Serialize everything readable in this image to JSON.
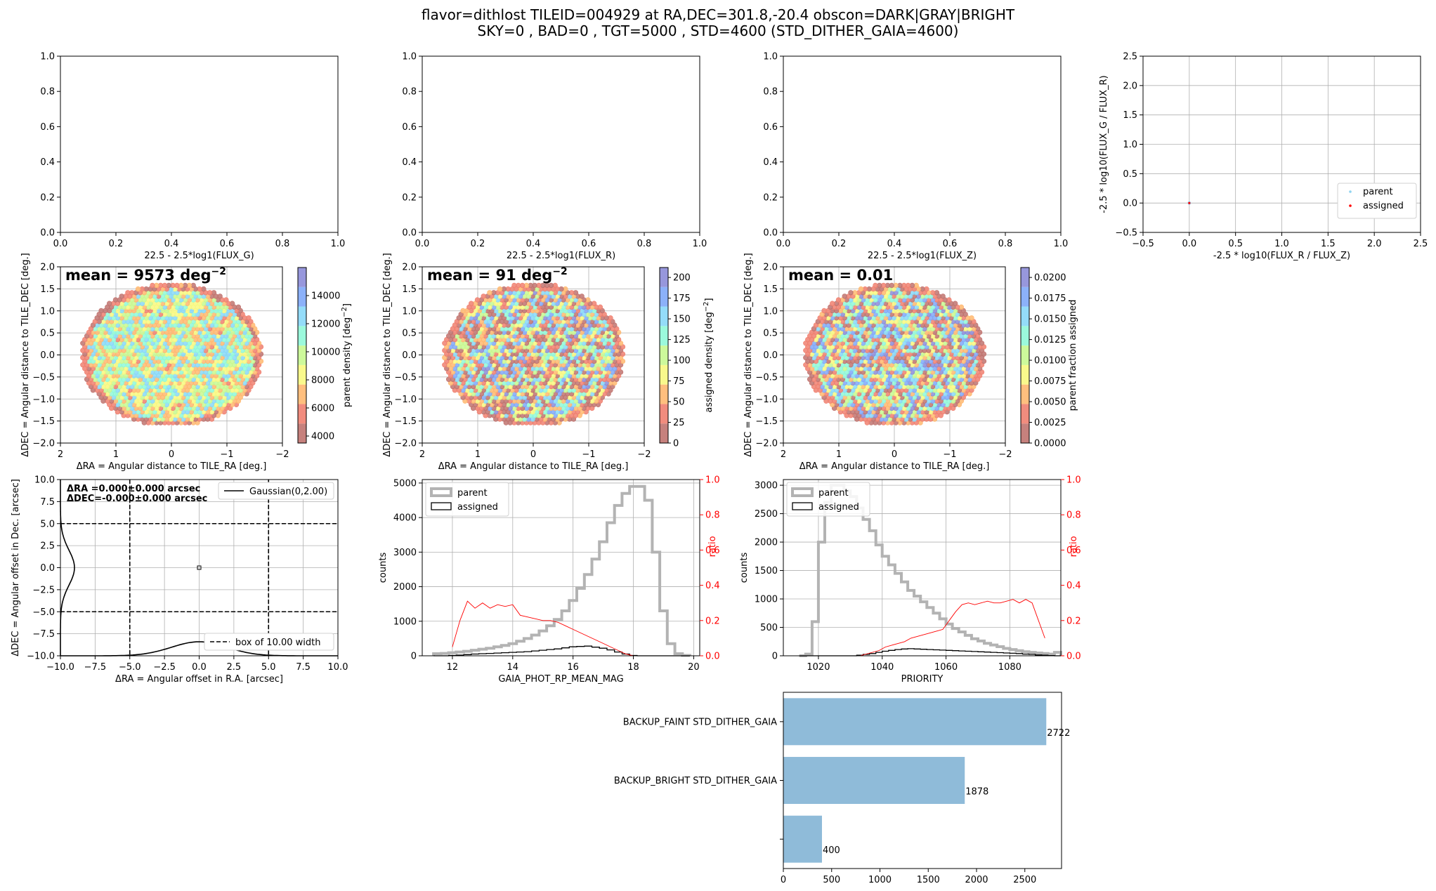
{
  "figure": {
    "title_line1": "flavor=dithlost     TILEID=004929 at RA,DEC=301.8,-20.4    obscon=DARK|GRAY|BRIGHT",
    "title_line2": "SKY=0 , BAD=0 , TGT=5000 , STD=4600 (STD_DITHER_GAIA=4600)"
  },
  "chart_data": [
    {
      "id": "flux_g",
      "type": "scatter",
      "xlabel": "22.5 - 2.5*log1(FLUX_G)",
      "ylabel": "",
      "xlim": [
        0,
        1
      ],
      "ylim": [
        0,
        1
      ],
      "xticks": [
        "0.0",
        "0.2",
        "0.4",
        "0.6",
        "0.8",
        "1.0"
      ],
      "yticks": [
        "0.0",
        "0.2",
        "0.4",
        "0.6",
        "0.8",
        "1.0"
      ],
      "grid": false,
      "points": []
    },
    {
      "id": "flux_r",
      "type": "scatter",
      "xlabel": "22.5 - 2.5*log1(FLUX_R)",
      "ylabel": "",
      "xlim": [
        0,
        1
      ],
      "ylim": [
        0,
        1
      ],
      "xticks": [
        "0.0",
        "0.2",
        "0.4",
        "0.6",
        "0.8",
        "1.0"
      ],
      "yticks": [
        "0.0",
        "0.2",
        "0.4",
        "0.6",
        "0.8",
        "1.0"
      ],
      "grid": false,
      "points": []
    },
    {
      "id": "flux_z",
      "type": "scatter",
      "xlabel": "22.5 - 2.5*log1(FLUX_Z)",
      "ylabel": "",
      "xlim": [
        0,
        1
      ],
      "ylim": [
        0,
        1
      ],
      "xticks": [
        "0.0",
        "0.2",
        "0.4",
        "0.6",
        "0.8",
        "1.0"
      ],
      "yticks": [
        "0.0",
        "0.2",
        "0.4",
        "0.6",
        "0.8",
        "1.0"
      ],
      "grid": false,
      "points": []
    },
    {
      "id": "color_color",
      "type": "scatter",
      "xlabel": "-2.5 * log10(FLUX_R / FLUX_Z)",
      "ylabel": "-2.5 * log10(FLUX_G / FLUX_R)",
      "xlim": [
        -0.5,
        2.5
      ],
      "ylim": [
        -0.5,
        2.5
      ],
      "xticks": [
        "−0.5",
        "0.0",
        "0.5",
        "1.0",
        "1.5",
        "2.0",
        "2.5"
      ],
      "yticks": [
        "−0.5",
        "0.0",
        "0.5",
        "1.0",
        "1.5",
        "2.0",
        "2.5"
      ],
      "grid": true,
      "legend": "lower right",
      "series": [
        {
          "name": "parent",
          "color": "#8fd3f0",
          "points": [
            [
              0,
              0
            ]
          ]
        },
        {
          "name": "assigned",
          "color": "#ff0000",
          "points": [
            [
              0,
              0
            ]
          ]
        }
      ]
    },
    {
      "id": "parent_density",
      "type": "heatmap",
      "xlabel": "ΔRA = Angular distance to TILE_RA [deg.]",
      "ylabel": "ΔDEC = Angular distance to TILE_DEC [deg.]",
      "xlim": [
        2,
        -2
      ],
      "ylim": [
        -2,
        2
      ],
      "xticks": [
        "2",
        "1",
        "0",
        "−1",
        "−2"
      ],
      "yticks": [
        "−2.0",
        "−1.5",
        "−1.0",
        "−0.5",
        "0.0",
        "0.5",
        "1.0",
        "1.5",
        "2.0"
      ],
      "annotation": "mean = 9573 deg",
      "annotation_sup": "−2",
      "colorbar_label": "parent density [deg",
      "colorbar_label_sup": "−2",
      "colorbar_label_end": "]",
      "colorbar_range": [
        3500,
        16000
      ],
      "colorbar_ticks": [
        "4000",
        "6000",
        "8000",
        "10000",
        "12000",
        "14000"
      ],
      "colorbar_tick_values": [
        4000,
        6000,
        8000,
        10000,
        12000,
        14000
      ],
      "mean_value": 9573
    },
    {
      "id": "assigned_density",
      "type": "heatmap",
      "xlabel": "ΔRA = Angular distance to TILE_RA [deg.]",
      "ylabel": "ΔDEC = Angular distance to TILE_DEC [deg.]",
      "xlim": [
        2,
        -2
      ],
      "ylim": [
        -2,
        2
      ],
      "xticks": [
        "2",
        "1",
        "0",
        "−1",
        "−2"
      ],
      "yticks": [
        "−2.0",
        "−1.5",
        "−1.0",
        "−0.5",
        "0.0",
        "0.5",
        "1.0",
        "1.5",
        "2.0"
      ],
      "annotation": "mean = 91 deg",
      "annotation_sup": "−2",
      "colorbar_label": "assigned density [deg",
      "colorbar_label_sup": "−2",
      "colorbar_label_end": "]",
      "colorbar_range": [
        0,
        212
      ],
      "colorbar_ticks": [
        "0",
        "25",
        "50",
        "75",
        "100",
        "125",
        "150",
        "175",
        "200"
      ],
      "colorbar_tick_values": [
        0,
        25,
        50,
        75,
        100,
        125,
        150,
        175,
        200
      ],
      "mean_value": 91
    },
    {
      "id": "fraction_assigned",
      "type": "heatmap",
      "xlabel": "ΔRA = Angular distance to TILE_RA [deg.]",
      "ylabel": "ΔDEC = Angular distance to TILE_DEC [deg.]",
      "xlim": [
        2,
        -2
      ],
      "ylim": [
        -2,
        2
      ],
      "xticks": [
        "2",
        "1",
        "0",
        "−1",
        "−2"
      ],
      "yticks": [
        "−2.0",
        "−1.5",
        "−1.0",
        "−0.5",
        "0.0",
        "0.5",
        "1.0",
        "1.5",
        "2.0"
      ],
      "annotation": "mean = 0.01",
      "annotation_sup": "",
      "colorbar_label": "parent fraction assigned",
      "colorbar_label_sup": "",
      "colorbar_label_end": "",
      "colorbar_range": [
        0,
        0.0212
      ],
      "colorbar_ticks": [
        "0.0000",
        "0.0025",
        "0.0050",
        "0.0075",
        "0.0100",
        "0.0125",
        "0.0150",
        "0.0175",
        "0.0200"
      ],
      "colorbar_tick_values": [
        0,
        0.0025,
        0.005,
        0.0075,
        0.01,
        0.0125,
        0.015,
        0.0175,
        0.02
      ],
      "mean_value": 0.01
    },
    {
      "id": "dither_offsets",
      "type": "scatter",
      "xlabel": "ΔRA = Angular offset in R.A. [arcsec]",
      "ylabel": "ΔDEC = Angular offset in Dec. [arcsec]",
      "xlim": [
        -10,
        10
      ],
      "ylim": [
        -10,
        10
      ],
      "xticks": [
        "−10.0",
        "−7.5",
        "−5.0",
        "−2.5",
        "0.0",
        "2.5",
        "5.0",
        "7.5",
        "10.0"
      ],
      "yticks": [
        "−10.0",
        "−7.5",
        "−5.0",
        "−2.5",
        "0.0",
        "2.5",
        "5.0",
        "7.5",
        "10.0"
      ],
      "grid": true,
      "text_ra": "ΔRA =0.000±0.000 arcsec",
      "text_dec": "ΔDEC=-0.000±0.000 arcsec",
      "legend_gauss": "Gaussian(0,2.00)",
      "legend_box": "box of 10.00 width",
      "gauss_sigma": 2.0,
      "box_half_width": 5,
      "points": [
        [
          0,
          0
        ]
      ]
    },
    {
      "id": "hist_rp_mag",
      "type": "line",
      "xlabel": "GAIA_PHOT_RP_MEAN_MAG",
      "ylabel": "counts",
      "ylabel_right": "ratio",
      "xlim": [
        11,
        20.2
      ],
      "ylim": [
        0,
        5100
      ],
      "ylim_right": [
        0,
        1
      ],
      "xticks": [
        "12",
        "14",
        "16",
        "18",
        "20"
      ],
      "xtick_values": [
        12,
        14,
        16,
        18,
        20
      ],
      "yticks": [
        "0",
        "1000",
        "2000",
        "3000",
        "4000",
        "5000"
      ],
      "ytick_values": [
        0,
        1000,
        2000,
        3000,
        4000,
        5000
      ],
      "yticks_right": [
        "0.0",
        "0.2",
        "0.4",
        "0.6",
        "0.8",
        "1.0"
      ],
      "legend": "upper left",
      "series": [
        {
          "name": "parent",
          "color": "#b3b3b3",
          "x": [
            11.5,
            11.75,
            12.0,
            12.25,
            12.5,
            12.75,
            13.0,
            13.25,
            13.5,
            13.75,
            14.0,
            14.25,
            14.5,
            14.75,
            15.0,
            15.25,
            15.5,
            15.75,
            16.0,
            16.25,
            16.5,
            16.75,
            17.0,
            17.25,
            17.5,
            17.75,
            18.0,
            18.25,
            18.5,
            18.75,
            19.0,
            19.25,
            19.5,
            19.75
          ],
          "values": [
            60,
            70,
            90,
            110,
            130,
            160,
            190,
            220,
            260,
            300,
            350,
            420,
            500,
            600,
            720,
            870,
            1050,
            1300,
            1600,
            1950,
            2350,
            2800,
            3300,
            3850,
            4350,
            4700,
            4900,
            4900,
            4500,
            3000,
            1300,
            350,
            60,
            10
          ]
        },
        {
          "name": "assigned",
          "color": "#000000",
          "x": [
            11.5,
            11.75,
            12.0,
            12.25,
            12.5,
            12.75,
            13.0,
            13.25,
            13.5,
            13.75,
            14.0,
            14.25,
            14.5,
            14.75,
            15.0,
            15.25,
            15.5,
            15.75,
            16.0,
            16.25,
            16.5,
            16.75,
            17.0,
            17.25,
            17.5,
            17.75,
            18.0,
            18.25,
            18.5,
            18.75,
            19.0,
            19.25,
            19.5,
            19.75
          ],
          "values": [
            0,
            0,
            10,
            20,
            35,
            50,
            60,
            70,
            80,
            90,
            100,
            110,
            120,
            140,
            160,
            180,
            200,
            230,
            260,
            270,
            280,
            250,
            220,
            170,
            110,
            50,
            10,
            0,
            0,
            0,
            0,
            0,
            0,
            0
          ]
        },
        {
          "name": "ratio",
          "color": "#ff0000",
          "axis": "right",
          "x": [
            12.0,
            12.25,
            12.5,
            12.75,
            13.0,
            13.25,
            13.5,
            13.75,
            14.0,
            14.25,
            14.5,
            14.75,
            15.0,
            15.25,
            15.5,
            15.75,
            16.0,
            16.25,
            16.5,
            16.75,
            17.0,
            17.25,
            17.5,
            17.75,
            18.0
          ],
          "values": [
            0.05,
            0.2,
            0.31,
            0.27,
            0.3,
            0.27,
            0.29,
            0.28,
            0.29,
            0.23,
            0.22,
            0.21,
            0.2,
            0.2,
            0.19,
            0.17,
            0.15,
            0.13,
            0.11,
            0.09,
            0.07,
            0.05,
            0.03,
            0.01,
            0.0
          ]
        }
      ]
    },
    {
      "id": "hist_priority",
      "type": "line",
      "xlabel": "PRIORITY",
      "ylabel": "counts",
      "ylabel_right": "ratio",
      "xlim": [
        1009,
        1096
      ],
      "ylim": [
        0,
        3100
      ],
      "ylim_right": [
        0,
        1
      ],
      "xticks": [
        "1020",
        "1040",
        "1060",
        "1080"
      ],
      "xtick_values": [
        1020,
        1040,
        1060,
        1080
      ],
      "yticks": [
        "0",
        "500",
        "1000",
        "1500",
        "2000",
        "2500",
        "3000"
      ],
      "ytick_values": [
        0,
        500,
        1000,
        1500,
        2000,
        2500,
        3000
      ],
      "yticks_right": [
        "0.0",
        "0.2",
        "0.4",
        "0.6",
        "0.8",
        "1.0"
      ],
      "legend": "upper left",
      "series": [
        {
          "name": "parent",
          "color": "#b3b3b3",
          "x": [
            1015,
            1017,
            1019,
            1021,
            1023,
            1025,
            1027,
            1029,
            1031,
            1033,
            1035,
            1037,
            1039,
            1041,
            1043,
            1045,
            1047,
            1049,
            1051,
            1053,
            1055,
            1057,
            1059,
            1061,
            1063,
            1065,
            1067,
            1069,
            1071,
            1073,
            1075,
            1077,
            1079,
            1081,
            1083,
            1085,
            1087,
            1089,
            1091,
            1093,
            1095
          ],
          "values": [
            0,
            30,
            600,
            2000,
            2700,
            3000,
            3000,
            2900,
            2800,
            2600,
            2400,
            2200,
            1950,
            1750,
            1600,
            1450,
            1300,
            1150,
            1050,
            950,
            850,
            750,
            650,
            560,
            480,
            420,
            360,
            300,
            260,
            220,
            190,
            160,
            130,
            110,
            90,
            70,
            60,
            50,
            40,
            30,
            60
          ]
        },
        {
          "name": "assigned",
          "color": "#000000",
          "x": [
            1015,
            1017,
            1019,
            1021,
            1023,
            1025,
            1027,
            1029,
            1031,
            1033,
            1035,
            1037,
            1039,
            1041,
            1043,
            1045,
            1047,
            1049,
            1051,
            1053,
            1055,
            1057,
            1059,
            1061,
            1063,
            1065,
            1067,
            1069,
            1071,
            1073,
            1075,
            1077,
            1079,
            1081,
            1083,
            1085,
            1087,
            1089,
            1091,
            1093,
            1095
          ],
          "values": [
            0,
            0,
            0,
            0,
            0,
            0,
            0,
            0,
            0,
            10,
            25,
            40,
            60,
            80,
            95,
            110,
            120,
            125,
            120,
            115,
            110,
            105,
            100,
            95,
            90,
            85,
            80,
            75,
            70,
            65,
            60,
            55,
            50,
            45,
            40,
            30,
            25,
            15,
            10,
            5,
            0
          ]
        },
        {
          "name": "ratio",
          "color": "#ff0000",
          "axis": "right",
          "x": [
            1033,
            1035,
            1037,
            1039,
            1041,
            1043,
            1045,
            1047,
            1049,
            1051,
            1053,
            1055,
            1057,
            1059,
            1061,
            1063,
            1065,
            1067,
            1069,
            1071,
            1073,
            1075,
            1077,
            1079,
            1081,
            1083,
            1085,
            1087,
            1089,
            1091
          ],
          "values": [
            0.0,
            0.01,
            0.02,
            0.03,
            0.05,
            0.06,
            0.07,
            0.08,
            0.1,
            0.11,
            0.12,
            0.13,
            0.14,
            0.15,
            0.2,
            0.25,
            0.29,
            0.3,
            0.29,
            0.3,
            0.31,
            0.3,
            0.3,
            0.31,
            0.32,
            0.3,
            0.32,
            0.3,
            0.2,
            0.1
          ]
        }
      ]
    },
    {
      "id": "target_counts",
      "type": "bar",
      "orientation": "horizontal",
      "categories": [
        "BACKUP_FAINT STD_DITHER_GAIA",
        "BACKUP_BRIGHT STD_DITHER_GAIA",
        ""
      ],
      "values": [
        2722,
        1878,
        400
      ],
      "value_labels": [
        "2722",
        "1878",
        "400"
      ],
      "xlim": [
        0,
        2880
      ],
      "xticks": [
        "0",
        "500",
        "1000",
        "1500",
        "2000",
        "2500"
      ],
      "xtick_values": [
        0,
        500,
        1000,
        1500,
        2000,
        2500
      ],
      "color": "#8fbbd9",
      "xlabel": "",
      "ylabel": ""
    }
  ]
}
